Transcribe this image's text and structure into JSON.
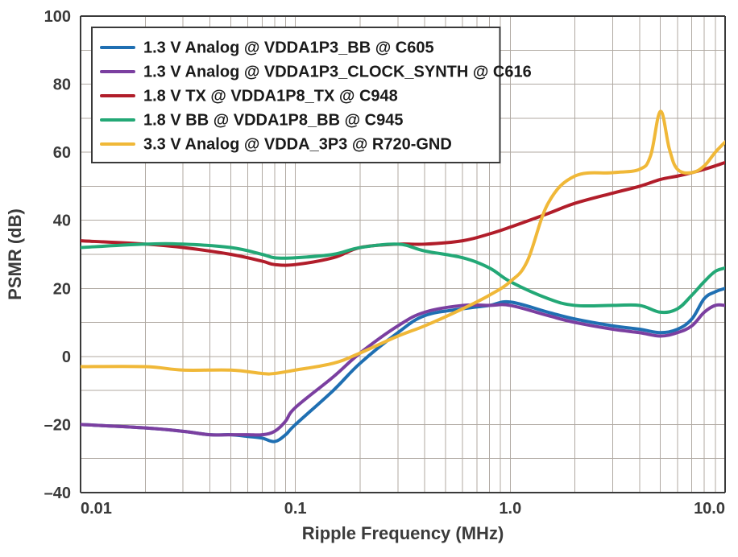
{
  "chart": {
    "type": "line",
    "title": null,
    "background_color": "#ffffff",
    "plot_background": "#ffffff",
    "grid_color": "#b0a9a2",
    "grid_linewidth": 1,
    "axis_color": "#3a3a3a",
    "axis_linewidth": 2,
    "series_linewidth": 4,
    "legend_swatch_width": 40,
    "legend_swatch_linewidth": 4,
    "label_font_family": "Segoe UI, Helvetica Neue, Arial, sans-serif",
    "label_fontsize": 22,
    "tick_fontsize": 20,
    "legend_fontsize": 20,
    "x_axis": {
      "label": "Ripple Frequency (MHz)",
      "scale": "log",
      "min": 0.01,
      "max": 10.0,
      "tick_values": [
        0.01,
        0.1,
        1.0,
        10.0
      ],
      "tick_labels": [
        "0.01",
        "0.1",
        "1.0",
        "10.0"
      ]
    },
    "y_axis": {
      "label": "PSMR (dB)",
      "scale": "linear",
      "min": -40,
      "max": 100,
      "tick_step": 20,
      "tick_values": [
        -40,
        -20,
        0,
        20,
        40,
        60,
        80,
        100
      ],
      "tick_labels": [
        "–40",
        "–20",
        "0",
        "20",
        "40",
        "60",
        "80",
        "100"
      ]
    },
    "legend": {
      "position": "top-left-inside",
      "border_color": "#3a3a3a",
      "border_width": 2,
      "background": "#ffffff"
    },
    "series": [
      {
        "id": "s1",
        "label": "1.3 V Analog @ VDDA1P3_BB @ C605",
        "color": "#1f6fb2",
        "x": [
          0.01,
          0.02,
          0.03,
          0.04,
          0.05,
          0.06,
          0.07,
          0.08,
          0.09,
          0.1,
          0.15,
          0.2,
          0.3,
          0.4,
          0.6,
          0.8,
          1.0,
          1.5,
          2.0,
          3.0,
          4.0,
          5.0,
          6.0,
          7.0,
          8.0,
          9.0,
          10.0
        ],
        "y": [
          -20,
          -21,
          -22,
          -23,
          -23,
          -23.5,
          -24,
          -25,
          -23,
          -20,
          -10,
          -2,
          7,
          12,
          14,
          15,
          16,
          13,
          11,
          9,
          8,
          7,
          8,
          11,
          17,
          19,
          20
        ]
      },
      {
        "id": "s2",
        "label": "1.3 V Analog @ VDDA1P3_CLOCK_SYNTH @ C616",
        "color": "#7b3fa0",
        "x": [
          0.01,
          0.02,
          0.03,
          0.04,
          0.05,
          0.06,
          0.07,
          0.08,
          0.09,
          0.1,
          0.15,
          0.2,
          0.3,
          0.4,
          0.6,
          0.8,
          1.0,
          1.5,
          2.0,
          3.0,
          4.0,
          5.0,
          6.0,
          7.0,
          8.0,
          9.0,
          10.0
        ],
        "y": [
          -20,
          -21,
          -22,
          -23,
          -23,
          -23,
          -23,
          -22,
          -19,
          -15,
          -6,
          1,
          9,
          13,
          15,
          15,
          15,
          12,
          10,
          8,
          7,
          6,
          7,
          9,
          13,
          15,
          15
        ]
      },
      {
        "id": "s3",
        "label": "1.8 V TX @ VDDA1P8_TX @ C948",
        "color": "#b11d2a",
        "x": [
          0.01,
          0.02,
          0.03,
          0.05,
          0.07,
          0.08,
          0.1,
          0.15,
          0.2,
          0.3,
          0.4,
          0.6,
          0.8,
          1.0,
          1.5,
          2.0,
          3.0,
          4.0,
          5.0,
          6.0,
          7.0,
          8.0,
          9.0,
          10.0
        ],
        "y": [
          34,
          33,
          32,
          30,
          28,
          27,
          27,
          29,
          32,
          33,
          33,
          34,
          36,
          38,
          42,
          45,
          48,
          50,
          52,
          53,
          54,
          55,
          56,
          57
        ]
      },
      {
        "id": "s4",
        "label": "1.8 V BB @ VDDA1P8_BB @ C945",
        "color": "#23a876",
        "x": [
          0.01,
          0.02,
          0.03,
          0.05,
          0.07,
          0.08,
          0.1,
          0.15,
          0.2,
          0.3,
          0.4,
          0.6,
          0.8,
          1.0,
          1.5,
          2.0,
          3.0,
          4.0,
          5.0,
          6.0,
          7.0,
          8.0,
          9.0,
          10.0
        ],
        "y": [
          32,
          33,
          33,
          32,
          30,
          29,
          29,
          30,
          32,
          33,
          31,
          29,
          26,
          22,
          17,
          15,
          15,
          15,
          13,
          14,
          18,
          22,
          25,
          26
        ]
      },
      {
        "id": "s5",
        "label": "3.3 V Analog @ VDDA_3P3 @ R720-GND",
        "color": "#f0b838",
        "x": [
          0.01,
          0.02,
          0.03,
          0.05,
          0.07,
          0.08,
          0.1,
          0.15,
          0.2,
          0.3,
          0.4,
          0.6,
          0.8,
          1.0,
          1.2,
          1.5,
          2.0,
          3.0,
          4.0,
          4.5,
          5.0,
          5.5,
          6.0,
          7.0,
          8.0,
          9.0,
          10.0
        ],
        "y": [
          -3,
          -3,
          -4,
          -4,
          -5,
          -5,
          -4,
          -2,
          1,
          6,
          9,
          14,
          18,
          22,
          28,
          45,
          53,
          54,
          55,
          59,
          72,
          61,
          55,
          54,
          56,
          60,
          63
        ]
      }
    ]
  }
}
